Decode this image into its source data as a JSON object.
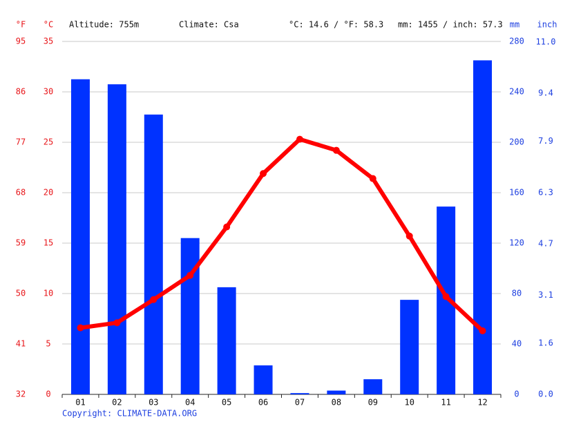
{
  "chart_data": {
    "type": "combo",
    "header": {
      "altitude": "Altitude: 755m",
      "climate": "Climate: Csa",
      "temp_avg": "°C: 14.6 / °F: 58.3",
      "precip_total": "mm: 1455 / inch: 57.3"
    },
    "footer": "Copyright: CLIMATE-DATA.ORG",
    "categories": [
      "01",
      "02",
      "03",
      "04",
      "05",
      "06",
      "07",
      "08",
      "09",
      "10",
      "11",
      "12"
    ],
    "series": [
      {
        "type": "bar",
        "axis": "y2",
        "color": "#0032ff",
        "values": [
          250,
          246,
          222,
          124,
          85,
          23,
          1,
          3,
          12,
          75,
          149,
          265
        ]
      },
      {
        "type": "line",
        "axis": "y",
        "color": "#ff0000",
        "values": [
          6.6,
          7.1,
          9.4,
          11.8,
          16.6,
          21.9,
          25.3,
          24.2,
          21.4,
          15.7,
          9.7,
          6.3
        ]
      }
    ],
    "y_unit": "°C",
    "ylim": [
      0,
      35
    ],
    "yticks": [
      0,
      5,
      10,
      15,
      20,
      25,
      30,
      35
    ],
    "yf_unit": "°F",
    "yflim": [
      32,
      95
    ],
    "yfticks": [
      32,
      41,
      50,
      59,
      68,
      77,
      86,
      95
    ],
    "y2_unit": "mm",
    "y2lim": [
      0,
      280
    ],
    "y2ticks": [
      0,
      40,
      80,
      120,
      160,
      200,
      240,
      280
    ],
    "y3_unit": "inch",
    "y3lim": [
      0,
      11.02
    ],
    "y3ticks": [
      {
        "value": 0,
        "label": "0.0"
      },
      1.6,
      3.1,
      4.7,
      6.3,
      7.9,
      9.4,
      {
        "value": 11,
        "label": "11.0"
      }
    ],
    "grid": true
  }
}
